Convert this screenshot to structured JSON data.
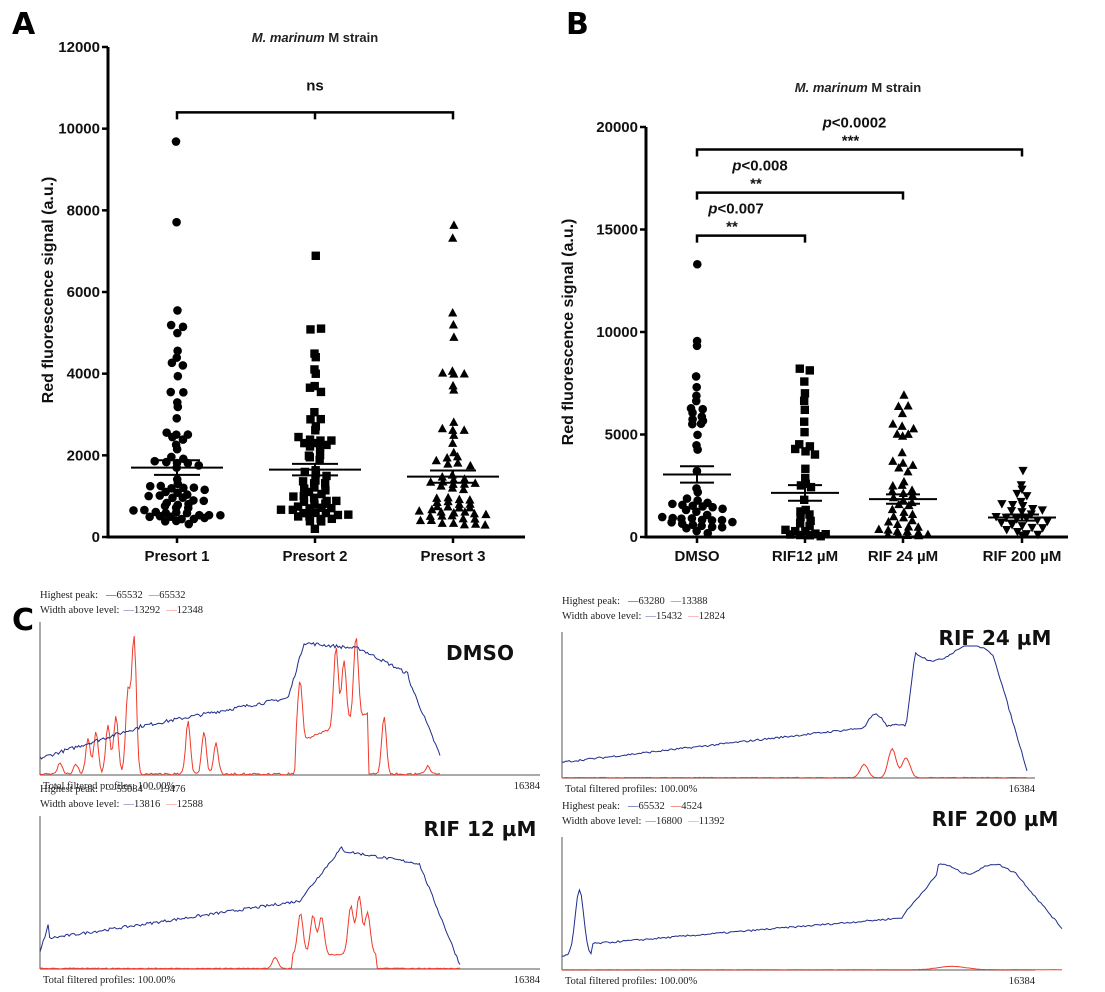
{
  "panel_labels": {
    "a": "A",
    "b": "B",
    "c": "C"
  },
  "chart_data": [
    {
      "type": "scatter",
      "panel": "A",
      "title_italic": "M. marinum",
      "title_rest": " M strain",
      "xlabel": "",
      "ylabel": "Red fluorescence signal (a.u.)",
      "ylim": [
        0,
        12000
      ],
      "yticks": [
        0,
        2000,
        4000,
        6000,
        8000,
        10000,
        12000
      ],
      "categories": [
        "Presort 1",
        "Presort 2",
        "Presort 3"
      ],
      "markers": [
        "circle",
        "square",
        "triangle"
      ],
      "means": [
        1700,
        1650,
        1480
      ],
      "sem": [
        180,
        140,
        150
      ],
      "significance": [
        {
          "from": 0,
          "to": 2,
          "label": "ns",
          "y": 10400,
          "mid_tick": true
        }
      ],
      "series": [
        {
          "name": "Presort 1",
          "values": [
            9700,
            7700,
            5550,
            5200,
            5150,
            5000,
            4550,
            4400,
            4250,
            4200,
            3950,
            3550,
            3550,
            3300,
            3200,
            2900,
            2550,
            2500,
            2500,
            2450,
            2400,
            2250,
            2150,
            1950,
            1900,
            1850,
            1850,
            1800,
            1800,
            1750,
            1700,
            1400,
            1300,
            1250,
            1250,
            1200,
            1200,
            1200,
            1150,
            1100,
            1100,
            1050,
            1000,
            1000,
            950,
            950,
            900,
            900,
            850,
            800,
            800,
            750,
            700,
            700,
            650,
            650,
            600,
            600,
            600,
            600,
            550,
            550,
            550,
            500,
            500,
            500,
            450,
            450,
            450,
            400,
            400,
            300
          ]
        },
        {
          "name": "Presort 2",
          "values": [
            6900,
            5100,
            5100,
            4500,
            4400,
            4100,
            4000,
            3700,
            3650,
            3550,
            3050,
            2900,
            2900,
            2700,
            2600,
            2450,
            2400,
            2350,
            2350,
            2300,
            2300,
            2250,
            2200,
            2200,
            2000,
            2000,
            1950,
            1900,
            1650,
            1600,
            1550,
            1500,
            1400,
            1350,
            1300,
            1300,
            1200,
            1200,
            1150,
            1100,
            1050,
            1000,
            1000,
            950,
            900,
            900,
            850,
            800,
            800,
            750,
            700,
            700,
            700,
            650,
            650,
            600,
            600,
            600,
            550,
            550,
            500,
            500,
            450,
            450,
            400,
            400,
            200
          ]
        },
        {
          "name": "Presort 3",
          "values": [
            7650,
            7300,
            5500,
            5200,
            4900,
            4050,
            4000,
            4000,
            4000,
            3700,
            3600,
            2800,
            2650,
            2600,
            2600,
            2500,
            2300,
            2050,
            1950,
            1950,
            1850,
            1800,
            1800,
            1750,
            1500,
            1450,
            1400,
            1400,
            1350,
            1350,
            1300,
            1300,
            1300,
            1250,
            1200,
            1150,
            950,
            950,
            900,
            900,
            850,
            850,
            800,
            800,
            750,
            750,
            700,
            700,
            650,
            650,
            600,
            600,
            600,
            550,
            550,
            500,
            500,
            500,
            450,
            450,
            400,
            400,
            350,
            350,
            300,
            300,
            300
          ]
        }
      ]
    },
    {
      "type": "scatter",
      "panel": "B",
      "title_italic": "M. marinum",
      "title_rest": " M strain",
      "xlabel": "",
      "ylabel": "Red fluorescence signal (a.u.)",
      "ylim": [
        0,
        20000
      ],
      "yticks": [
        0,
        5000,
        10000,
        15000,
        20000
      ],
      "categories": [
        "DMSO",
        "RIF12 µM",
        "RIF 24 µM",
        "RIF 200 µM"
      ],
      "markers": [
        "circle",
        "square",
        "triangle",
        "triangle-down"
      ],
      "means": [
        3050,
        2150,
        1850,
        950
      ],
      "sem": [
        400,
        380,
        230,
        150
      ],
      "significance": [
        {
          "from": 0,
          "to": 1,
          "p": "<0.007",
          "stars": "**",
          "y": 14700
        },
        {
          "from": 0,
          "to": 2,
          "p": "<0.008",
          "stars": "**",
          "y": 16800
        },
        {
          "from": 0,
          "to": 3,
          "p": "<0.0002",
          "stars": "***",
          "y": 18900
        }
      ],
      "series": [
        {
          "name": "DMSO",
          "values": [
            13300,
            9550,
            9300,
            7800,
            7300,
            6900,
            6600,
            6300,
            6200,
            6050,
            5900,
            5700,
            5650,
            5500,
            5500,
            5000,
            4500,
            4250,
            3200,
            2400,
            2200,
            1900,
            1800,
            1700,
            1600,
            1550,
            1500,
            1500,
            1450,
            1400,
            1300,
            1200,
            1100,
            1000,
            950,
            900,
            900,
            850,
            800,
            800,
            750,
            700,
            650,
            600,
            550,
            500,
            450,
            400,
            300,
            200
          ]
        },
        {
          "name": "RIF12 µM",
          "values": [
            8200,
            8100,
            7550,
            7000,
            6650,
            6200,
            5650,
            5100,
            4500,
            4400,
            4300,
            4200,
            4050,
            3300,
            2900,
            2600,
            2500,
            2400,
            1800,
            1350,
            1250,
            1100,
            950,
            800,
            700,
            500,
            350,
            300,
            250,
            200,
            150,
            100,
            100,
            50,
            50
          ]
        },
        {
          "name": "RIF 24 µM",
          "values": [
            6900,
            6400,
            6400,
            6000,
            5500,
            5400,
            5300,
            5000,
            5000,
            4900,
            4100,
            3700,
            3600,
            3500,
            3400,
            3200,
            2700,
            2500,
            2500,
            2300,
            2200,
            2100,
            2000,
            1900,
            1800,
            1700,
            1600,
            1500,
            1300,
            1200,
            1100,
            1000,
            900,
            800,
            700,
            600,
            500,
            450,
            400,
            350,
            300,
            250,
            200,
            150,
            100,
            100,
            50,
            50
          ]
        },
        {
          "name": "RIF 200 µM",
          "values": [
            3250,
            2550,
            2300,
            2150,
            2000,
            1750,
            1600,
            1550,
            1550,
            1400,
            1350,
            1300,
            1200,
            1100,
            1000,
            950,
            900,
            900,
            850,
            800,
            700,
            600,
            550,
            500,
            450,
            400,
            300,
            200,
            150,
            100
          ]
        }
      ]
    }
  ],
  "profiles": [
    {
      "condition": "DMSO",
      "highest_peak_label": "Highest peak:",
      "width_label": "Width above level:",
      "blue_peak": "65532",
      "red_peak": "65532",
      "blue_width": "13292",
      "red_width": "12348",
      "footer": "Total filtered profiles: 100.00%",
      "xmax": "16384"
    },
    {
      "condition": "RIF 12 µM",
      "highest_peak_label": "Highest peak:",
      "width_label": "Width above level:",
      "blue_peak": "55084",
      "red_peak": "19476",
      "blue_width": "13816",
      "red_width": "12588",
      "footer": "Total filtered profiles: 100.00%",
      "xmax": "16384"
    },
    {
      "condition": "RIF 24 µM",
      "highest_peak_label": "Highest peak:",
      "width_label": "Width above level:",
      "blue_peak": "63280",
      "red_peak": "13388",
      "blue_width": "15432",
      "red_width": "12824",
      "footer": "Total filtered profiles: 100.00%",
      "xmax": "16384"
    },
    {
      "condition": "RIF 200 µM",
      "highest_peak_label": "Highest peak:",
      "width_label": "Width above level:",
      "blue_peak": "65532",
      "red_peak": "4524",
      "blue_width": "16800",
      "red_width": "11392",
      "footer": "Total filtered profiles: 100.00%",
      "xmax": "16384"
    }
  ],
  "colors": {
    "blue": "#1f2d8c",
    "red": "#f03a2a",
    "marker": "#000000"
  }
}
